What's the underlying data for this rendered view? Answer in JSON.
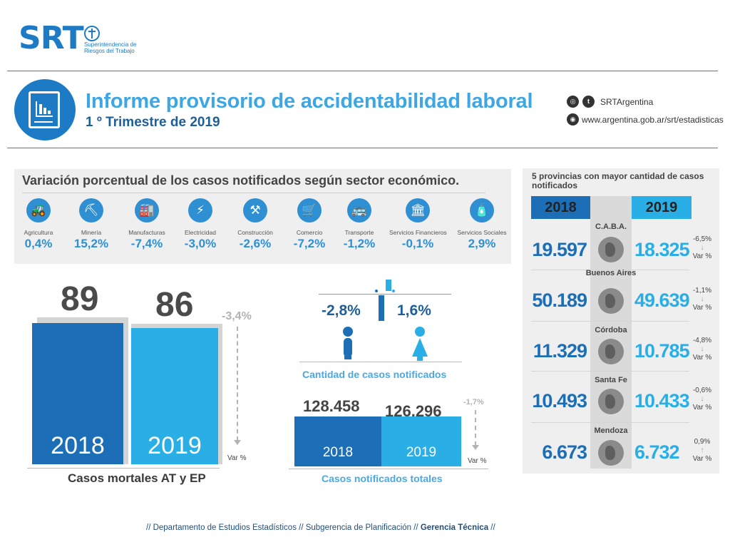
{
  "header": {
    "logo": "SRT",
    "logo_sub_1": "Superintendencia de",
    "logo_sub_2": "Riesgos del Trabajo",
    "title": "Informe provisorio de accidentabilidad laboral",
    "subtitle": "1 º Trimestre de 2019",
    "social_handle": "SRTArgentina",
    "website": "www.argentina.gob.ar/srt/estadisticas",
    "icons": [
      "instagram-icon",
      "twitter-icon",
      "web-icon"
    ]
  },
  "sectors": {
    "title": "Variación porcentual de los casos notificados según sector económico.",
    "items": [
      {
        "label": "Agricultura",
        "value": "0,4%",
        "icon": "tractor-icon"
      },
      {
        "label": "Minería",
        "value": "15,2%",
        "icon": "oil-pump-icon"
      },
      {
        "label": "Manufacturas",
        "value": "-7,4%",
        "icon": "factory-icon"
      },
      {
        "label": "Electricidad",
        "value": "-3,0%",
        "icon": "lightning-icon"
      },
      {
        "label": "Construcción",
        "value": "-2,6%",
        "icon": "wheelbarrow-icon"
      },
      {
        "label": "Comercio",
        "value": "-7,2%",
        "icon": "cart-icon"
      },
      {
        "label": "Transporte",
        "value": "-1,2%",
        "icon": "bus-icon"
      },
      {
        "label": "Servicios Financieros",
        "value": "-0,1%",
        "icon": "bank-icon"
      },
      {
        "label": "Servicios Sociales",
        "value": "2,9%",
        "icon": "cleaning-icon"
      }
    ]
  },
  "deaths": {
    "value_2018": "89",
    "value_2019": "86",
    "year_2018": "2018",
    "year_2019": "2019",
    "variation": "-3,4%",
    "var_label": "Var %",
    "caption": "Casos mortales AT y EP"
  },
  "gender": {
    "male_var": "-2,8%",
    "female_var": "1,6%",
    "caption": "Cantidad de casos notificados"
  },
  "totals": {
    "value_2018": "128.458",
    "value_2019": "126.296",
    "year_2018": "2018",
    "year_2019": "2019",
    "variation": "-1,7%",
    "var_label": "Var %",
    "caption": "Casos notificados totales"
  },
  "provinces": {
    "title": "5 provincias con mayor cantidad de casos notificados",
    "year_2018": "2018",
    "year_2019": "2019",
    "var_label": "Var %",
    "items": [
      {
        "name": "C.A.B.A.",
        "v2018": "19.597",
        "v2019": "18.325",
        "var": "-6,5%",
        "arrow": "↓"
      },
      {
        "name": "Buenos Aires",
        "v2018": "50.189",
        "v2019": "49.639",
        "var": "-1,1%",
        "arrow": "↓"
      },
      {
        "name": "Córdoba",
        "v2018": "11.329",
        "v2019": "10.785",
        "var": "-4,8%",
        "arrow": "↓"
      },
      {
        "name": "Santa Fe",
        "v2018": "10.493",
        "v2019": "10.433",
        "var": "-0,6%",
        "arrow": "↓"
      },
      {
        "name": "Mendoza",
        "v2018": "6.673",
        "v2019": "6.732",
        "var": "0,9%",
        "arrow": "↑"
      }
    ]
  },
  "footer": {
    "part1": "// Departamento de Estudios Estadísticos // Subgerencia de Planificación //",
    "part2": "Gerencia Técnica",
    "part3": "//"
  },
  "colors": {
    "dark_blue": "#1c6fb7",
    "light_blue": "#2aaee6",
    "title_blue": "#3ea6e3",
    "grey_panel": "#efefef"
  }
}
